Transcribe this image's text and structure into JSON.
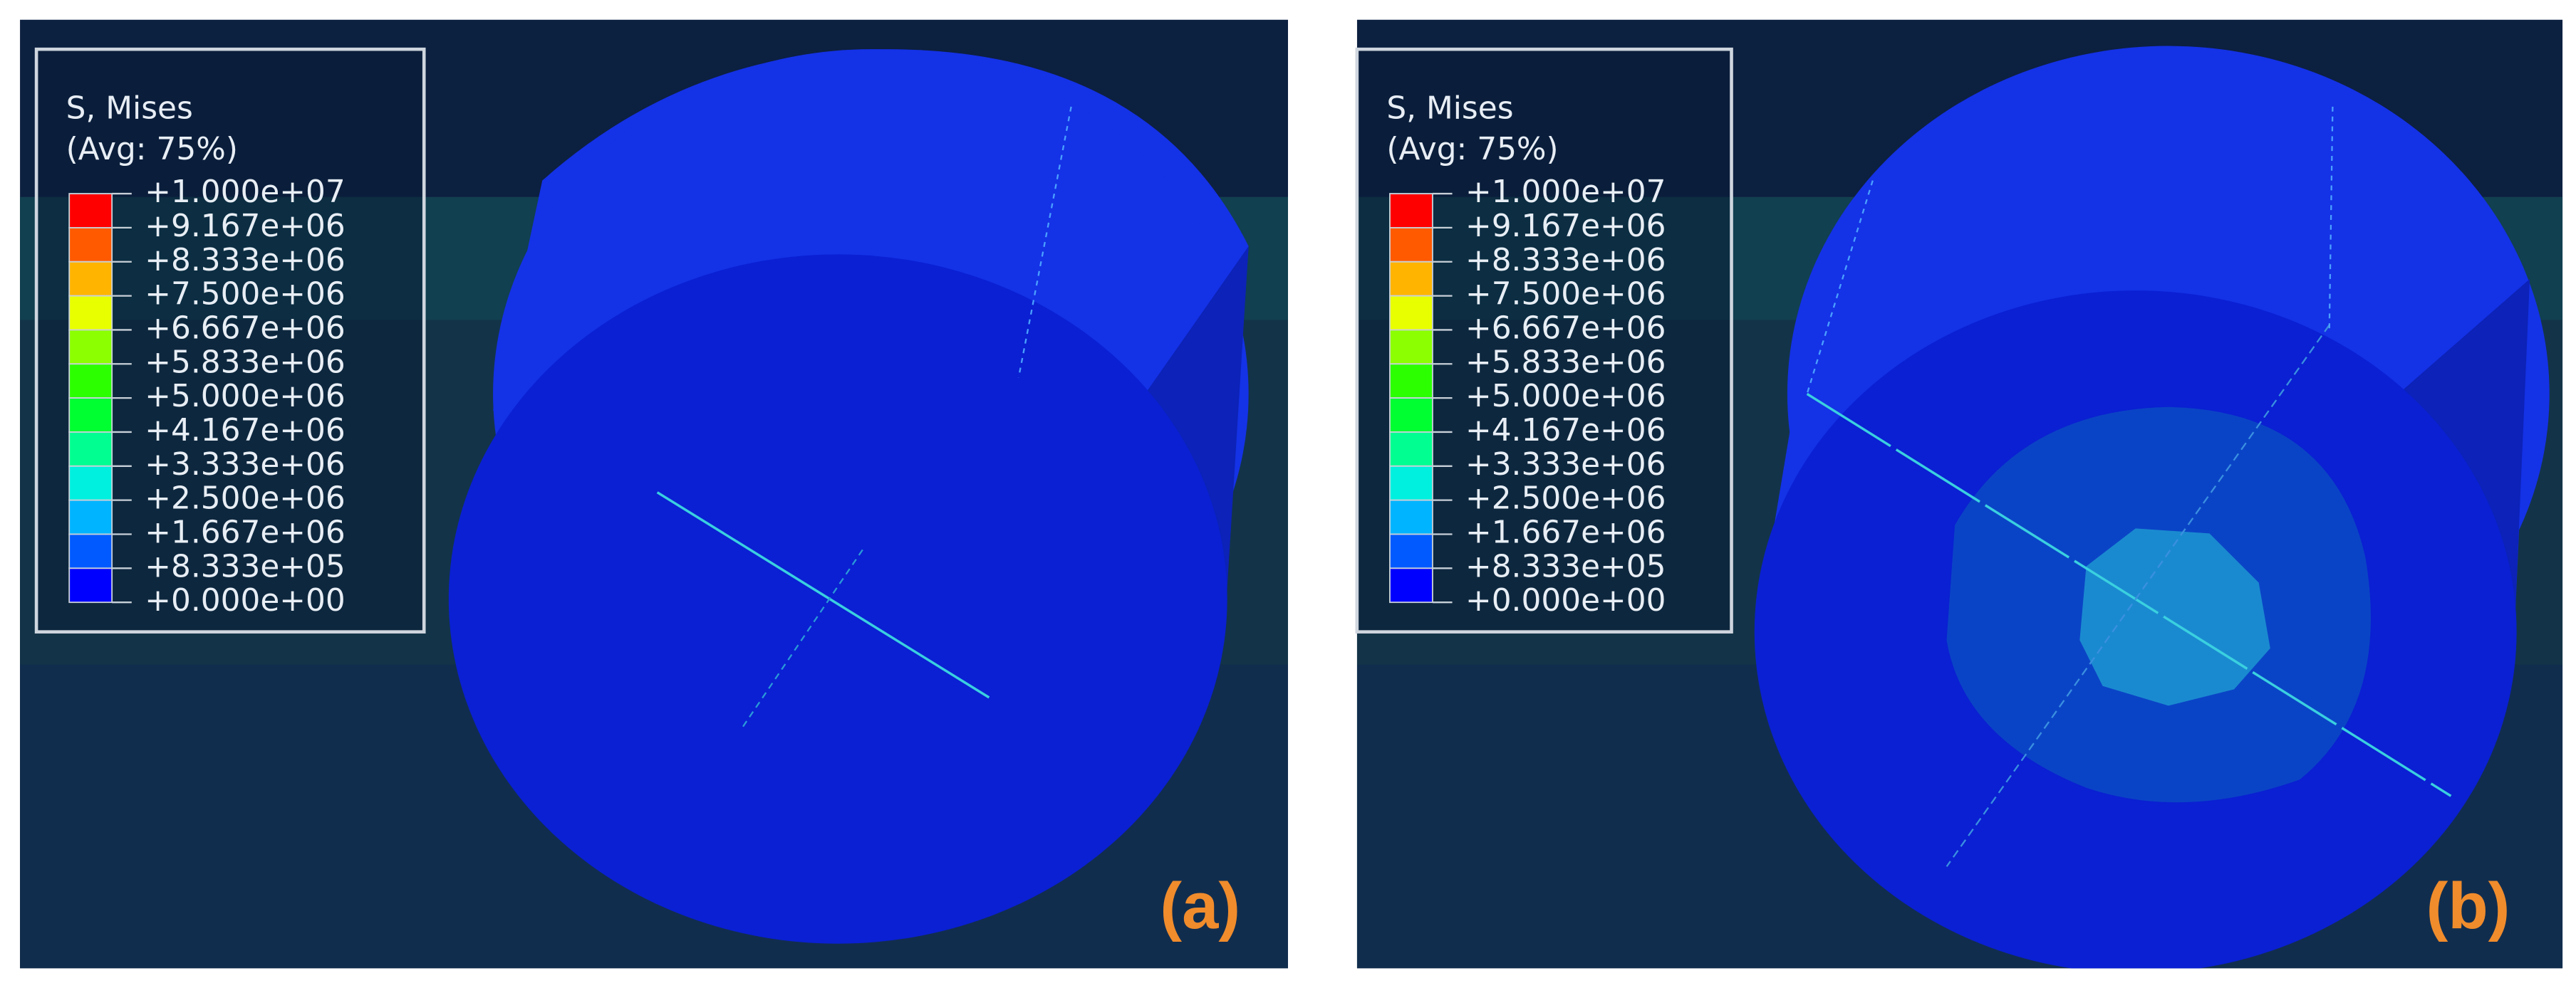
{
  "panels": [
    {
      "label": "(a)",
      "legend": {
        "title": "S, Mises",
        "subtitle": "(Avg: 75%)",
        "levels": [
          "+1.000e+07",
          "+9.167e+06",
          "+8.333e+06",
          "+7.500e+06",
          "+6.667e+06",
          "+5.833e+06",
          "+5.000e+06",
          "+4.167e+06",
          "+3.333e+06",
          "+2.500e+06",
          "+1.667e+06",
          "+8.333e+05",
          "+0.000e+00"
        ]
      }
    },
    {
      "label": "(b)",
      "legend": {
        "title": "S, Mises",
        "subtitle": "(Avg: 75%)",
        "levels": [
          "+1.000e+07",
          "+9.167e+06",
          "+8.333e+06",
          "+7.500e+06",
          "+6.667e+06",
          "+5.833e+06",
          "+5.000e+06",
          "+4.167e+06",
          "+3.333e+06",
          "+2.500e+06",
          "+1.667e+06",
          "+8.333e+05",
          "+0.000e+00"
        ]
      }
    }
  ]
}
